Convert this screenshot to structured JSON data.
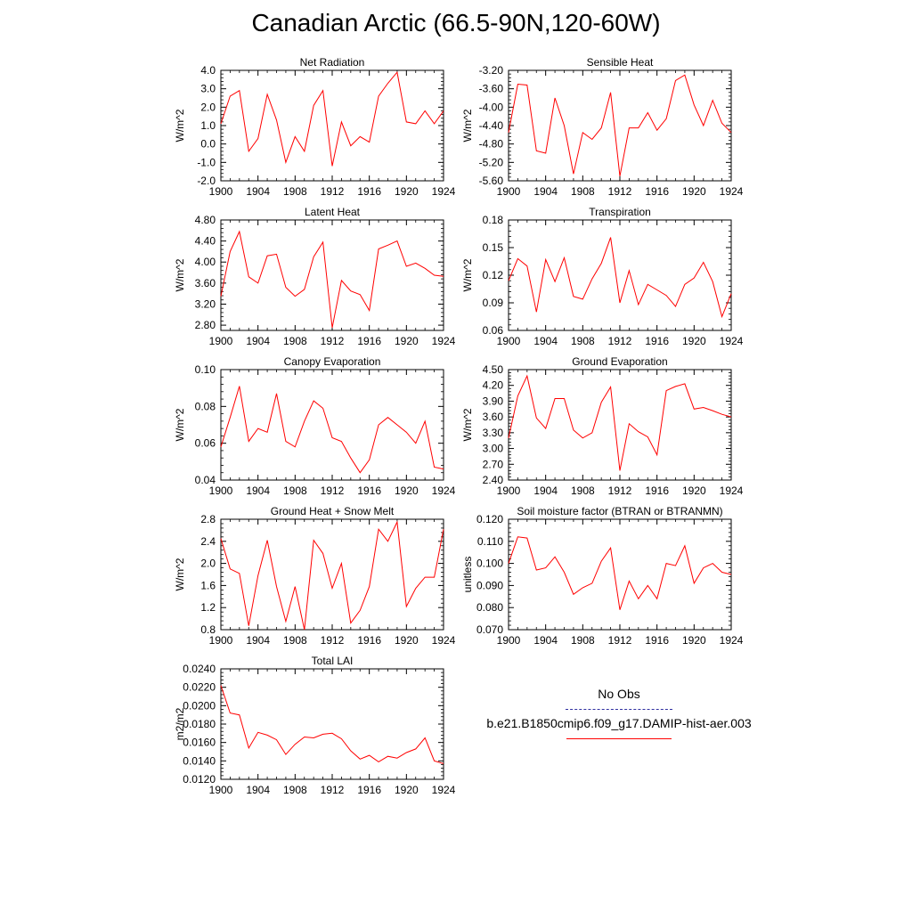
{
  "title": "Canadian Arctic (66.5-90N,120-60W)",
  "chart_data": [
    {
      "type": "line",
      "title": "Net Radiation",
      "ylabel": "W/m^2",
      "xlim": [
        1900,
        1924
      ],
      "ylim": [
        -2.0,
        4.0
      ],
      "yticks": [
        "-2.0",
        "-1.0",
        "0.0",
        "1.0",
        "2.0",
        "3.0",
        "4.0"
      ],
      "xticks": [
        "1900",
        "1904",
        "1908",
        "1912",
        "1916",
        "1920",
        "1924"
      ],
      "x": [
        1900,
        1901,
        1902,
        1903,
        1904,
        1905,
        1906,
        1907,
        1908,
        1909,
        1910,
        1911,
        1912,
        1913,
        1914,
        1915,
        1916,
        1917,
        1918,
        1919,
        1920,
        1921,
        1922,
        1923,
        1924
      ],
      "series": [
        {
          "name": "b.e21.B1850cmip6.f09_g17.DAMIP-hist-aer.003",
          "values": [
            1.1,
            2.6,
            2.9,
            -0.4,
            0.3,
            2.7,
            1.3,
            -1.0,
            0.4,
            -0.4,
            2.1,
            2.9,
            -1.2,
            1.2,
            -0.1,
            0.4,
            0.1,
            2.6,
            3.3,
            3.9,
            1.2,
            1.1,
            1.8,
            1.1,
            1.8
          ]
        }
      ]
    },
    {
      "type": "line",
      "title": "Sensible Heat",
      "ylabel": "W/m^2",
      "xlim": [
        1900,
        1924
      ],
      "ylim": [
        -5.6,
        -3.2
      ],
      "yticks": [
        "-5.60",
        "-5.20",
        "-4.80",
        "-4.40",
        "-4.00",
        "-3.60",
        "-3.20"
      ],
      "xticks": [
        "1900",
        "1904",
        "1908",
        "1912",
        "1916",
        "1920",
        "1924"
      ],
      "x": [
        1900,
        1901,
        1902,
        1903,
        1904,
        1905,
        1906,
        1907,
        1908,
        1909,
        1910,
        1911,
        1912,
        1913,
        1914,
        1915,
        1916,
        1917,
        1918,
        1919,
        1920,
        1921,
        1922,
        1923,
        1924
      ],
      "series": [
        {
          "name": "b.e21.B1850cmip6.f09_g17.DAMIP-hist-aer.003",
          "values": [
            -4.55,
            -3.5,
            -3.52,
            -4.95,
            -5.0,
            -3.8,
            -4.4,
            -5.45,
            -4.55,
            -4.7,
            -4.45,
            -3.68,
            -5.5,
            -4.45,
            -4.45,
            -4.12,
            -4.5,
            -4.25,
            -3.42,
            -3.3,
            -3.95,
            -4.4,
            -3.85,
            -4.35,
            -4.55
          ]
        }
      ]
    },
    {
      "type": "line",
      "title": "Latent Heat",
      "ylabel": "W/m^2",
      "xlim": [
        1900,
        1924
      ],
      "ylim": [
        2.7,
        4.8
      ],
      "yticks": [
        "2.80",
        "3.20",
        "3.60",
        "4.00",
        "4.40",
        "4.80"
      ],
      "xticks": [
        "1900",
        "1904",
        "1908",
        "1912",
        "1916",
        "1920",
        "1924"
      ],
      "x": [
        1900,
        1901,
        1902,
        1903,
        1904,
        1905,
        1906,
        1907,
        1908,
        1909,
        1910,
        1911,
        1912,
        1913,
        1914,
        1915,
        1916,
        1917,
        1918,
        1919,
        1920,
        1921,
        1922,
        1923,
        1924
      ],
      "series": [
        {
          "name": "b.e21.B1850cmip6.f09_g17.DAMIP-hist-aer.003",
          "values": [
            3.35,
            4.2,
            4.58,
            3.72,
            3.6,
            4.12,
            4.15,
            3.52,
            3.35,
            3.48,
            4.1,
            4.38,
            2.75,
            3.65,
            3.45,
            3.38,
            3.08,
            4.25,
            4.32,
            4.4,
            3.92,
            3.98,
            3.88,
            3.75,
            3.73
          ]
        }
      ]
    },
    {
      "type": "line",
      "title": "Transpiration",
      "ylabel": "W/m^2",
      "xlim": [
        1900,
        1924
      ],
      "ylim": [
        0.06,
        0.18
      ],
      "yticks": [
        "0.06",
        "0.09",
        "0.12",
        "0.15",
        "0.18"
      ],
      "xticks": [
        "1900",
        "1904",
        "1908",
        "1912",
        "1916",
        "1920",
        "1924"
      ],
      "x": [
        1900,
        1901,
        1902,
        1903,
        1904,
        1905,
        1906,
        1907,
        1908,
        1909,
        1910,
        1911,
        1912,
        1913,
        1914,
        1915,
        1916,
        1917,
        1918,
        1919,
        1920,
        1921,
        1922,
        1923,
        1924
      ],
      "series": [
        {
          "name": "b.e21.B1850cmip6.f09_g17.DAMIP-hist-aer.003",
          "values": [
            0.114,
            0.138,
            0.13,
            0.08,
            0.137,
            0.113,
            0.139,
            0.097,
            0.094,
            0.116,
            0.133,
            0.161,
            0.09,
            0.125,
            0.088,
            0.11,
            0.104,
            0.098,
            0.086,
            0.11,
            0.117,
            0.134,
            0.113,
            0.075,
            0.1
          ]
        }
      ]
    },
    {
      "type": "line",
      "title": "Canopy Evaporation",
      "ylabel": "W/m^2",
      "xlim": [
        1900,
        1924
      ],
      "ylim": [
        0.04,
        0.1
      ],
      "yticks": [
        "0.04",
        "0.06",
        "0.08",
        "0.10"
      ],
      "xticks": [
        "1900",
        "1904",
        "1908",
        "1912",
        "1916",
        "1920",
        "1924"
      ],
      "x": [
        1900,
        1901,
        1902,
        1903,
        1904,
        1905,
        1906,
        1907,
        1908,
        1909,
        1910,
        1911,
        1912,
        1913,
        1914,
        1915,
        1916,
        1917,
        1918,
        1919,
        1920,
        1921,
        1922,
        1923,
        1924
      ],
      "series": [
        {
          "name": "b.e21.B1850cmip6.f09_g17.DAMIP-hist-aer.003",
          "values": [
            0.058,
            0.074,
            0.091,
            0.061,
            0.068,
            0.066,
            0.087,
            0.061,
            0.058,
            0.072,
            0.083,
            0.079,
            0.063,
            0.061,
            0.052,
            0.044,
            0.051,
            0.07,
            0.074,
            0.07,
            0.066,
            0.06,
            0.072,
            0.047,
            0.046
          ]
        }
      ]
    },
    {
      "type": "line",
      "title": "Ground Evaporation",
      "ylabel": "W/m^2",
      "xlim": [
        1900,
        1924
      ],
      "ylim": [
        2.4,
        4.5
      ],
      "yticks": [
        "2.40",
        "2.70",
        "3.00",
        "3.30",
        "3.60",
        "3.90",
        "4.20",
        "4.50"
      ],
      "xticks": [
        "1900",
        "1904",
        "1908",
        "1912",
        "1916",
        "1920",
        "1924"
      ],
      "x": [
        1900,
        1901,
        1902,
        1903,
        1904,
        1905,
        1906,
        1907,
        1908,
        1909,
        1910,
        1911,
        1912,
        1913,
        1914,
        1915,
        1916,
        1917,
        1918,
        1919,
        1920,
        1921,
        1922,
        1923,
        1924
      ],
      "series": [
        {
          "name": "b.e21.B1850cmip6.f09_g17.DAMIP-hist-aer.003",
          "values": [
            3.2,
            4.0,
            4.38,
            3.58,
            3.38,
            3.95,
            3.95,
            3.35,
            3.2,
            3.3,
            3.88,
            4.17,
            2.58,
            3.47,
            3.32,
            3.22,
            2.88,
            4.1,
            4.18,
            4.23,
            3.75,
            3.78,
            3.72,
            3.65,
            3.6
          ]
        }
      ]
    },
    {
      "type": "line",
      "title": "Ground Heat + Snow Melt",
      "ylabel": "W/m^2",
      "xlim": [
        1900,
        1924
      ],
      "ylim": [
        0.8,
        2.8
      ],
      "yticks": [
        "0.8",
        "1.2",
        "1.6",
        "2.0",
        "2.4",
        "2.8"
      ],
      "xticks": [
        "1900",
        "1904",
        "1908",
        "1912",
        "1916",
        "1920",
        "1924"
      ],
      "x": [
        1900,
        1901,
        1902,
        1903,
        1904,
        1905,
        1906,
        1907,
        1908,
        1909,
        1910,
        1911,
        1912,
        1913,
        1914,
        1915,
        1916,
        1917,
        1918,
        1919,
        1920,
        1921,
        1922,
        1923,
        1924
      ],
      "series": [
        {
          "name": "b.e21.B1850cmip6.f09_g17.DAMIP-hist-aer.003",
          "values": [
            2.45,
            1.9,
            1.82,
            0.87,
            1.78,
            2.42,
            1.58,
            0.95,
            1.58,
            0.8,
            2.42,
            2.18,
            1.55,
            2.0,
            0.92,
            1.15,
            1.58,
            2.62,
            2.4,
            2.75,
            1.22,
            1.55,
            1.75,
            1.75,
            2.62
          ]
        }
      ]
    },
    {
      "type": "line",
      "title": "Soil moisture factor (BTRAN or BTRANMN)",
      "ylabel": "unitless",
      "xlim": [
        1900,
        1924
      ],
      "ylim": [
        0.07,
        0.12
      ],
      "yticks": [
        "0.070",
        "0.080",
        "0.090",
        "0.100",
        "0.110",
        "0.120"
      ],
      "xticks": [
        "1900",
        "1904",
        "1908",
        "1912",
        "1916",
        "1920",
        "1924"
      ],
      "x": [
        1900,
        1901,
        1902,
        1903,
        1904,
        1905,
        1906,
        1907,
        1908,
        1909,
        1910,
        1911,
        1912,
        1913,
        1914,
        1915,
        1916,
        1917,
        1918,
        1919,
        1920,
        1921,
        1922,
        1923,
        1924
      ],
      "series": [
        {
          "name": "b.e21.B1850cmip6.f09_g17.DAMIP-hist-aer.003",
          "values": [
            0.1,
            0.112,
            0.1115,
            0.097,
            0.098,
            0.103,
            0.096,
            0.086,
            0.089,
            0.091,
            0.101,
            0.107,
            0.079,
            0.092,
            0.084,
            0.09,
            0.084,
            0.1,
            0.099,
            0.108,
            0.091,
            0.098,
            0.1,
            0.096,
            0.095
          ]
        }
      ]
    },
    {
      "type": "line",
      "title": "Total LAI",
      "ylabel": "m2/m2",
      "xlim": [
        1900,
        1924
      ],
      "ylim": [
        0.012,
        0.024
      ],
      "yticks": [
        "0.0120",
        "0.0140",
        "0.0160",
        "0.0180",
        "0.0200",
        "0.0220",
        "0.0240"
      ],
      "xticks": [
        "1900",
        "1904",
        "1908",
        "1912",
        "1916",
        "1920",
        "1924"
      ],
      "x": [
        1900,
        1901,
        1902,
        1903,
        1904,
        1905,
        1906,
        1907,
        1908,
        1909,
        1910,
        1911,
        1912,
        1913,
        1914,
        1915,
        1916,
        1917,
        1918,
        1919,
        1920,
        1921,
        1922,
        1923,
        1924
      ],
      "series": [
        {
          "name": "b.e21.B1850cmip6.f09_g17.DAMIP-hist-aer.003",
          "values": [
            0.0222,
            0.0192,
            0.019,
            0.0154,
            0.0171,
            0.0168,
            0.0163,
            0.0147,
            0.0158,
            0.0166,
            0.0165,
            0.0169,
            0.017,
            0.0164,
            0.0151,
            0.0142,
            0.0146,
            0.0139,
            0.0145,
            0.0143,
            0.0149,
            0.0153,
            0.0165,
            0.014,
            0.0137
          ]
        }
      ]
    }
  ],
  "legend": {
    "position": "bottom-right",
    "entries": [
      {
        "label": "No Obs",
        "color": "#3030a0",
        "style": "dashed"
      },
      {
        "label": "b.e21.B1850cmip6.f09_g17.DAMIP-hist-aer.003",
        "color": "#ff0000",
        "style": "solid"
      }
    ]
  },
  "series_color": "#ff0000"
}
